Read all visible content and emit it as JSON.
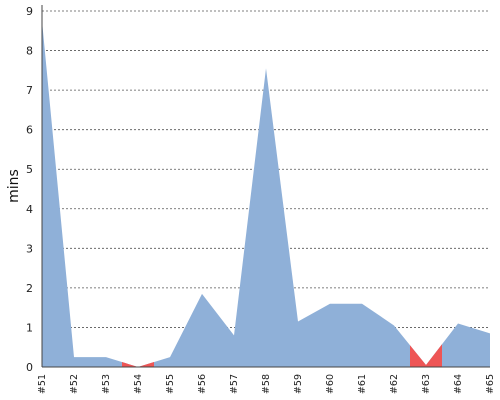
{
  "chart_data": {
    "type": "area",
    "ylabel": "mins",
    "xlabel": "",
    "ylim": [
      0,
      9
    ],
    "yticks": [
      "0",
      "1",
      "2",
      "3",
      "4",
      "5",
      "6",
      "7",
      "8",
      "9"
    ],
    "grid": true,
    "categories": [
      "#51",
      "#52",
      "#53",
      "#54",
      "#55",
      "#56",
      "#57",
      "#58",
      "#59",
      "#60",
      "#61",
      "#62",
      "#63",
      "#64",
      "#65"
    ],
    "series": [
      {
        "values": [
          8.75,
          0.25,
          0.25,
          0.0,
          0.25,
          1.85,
          0.8,
          7.55,
          1.15,
          1.6,
          1.6,
          1.05,
          0.05,
          1.1,
          0.85
        ]
      }
    ],
    "highlight_regions": [
      {
        "from": "#53",
        "to": "#55",
        "color": "#ee5555"
      },
      {
        "from": "#62",
        "to": "#64",
        "color": "#ee5555"
      }
    ],
    "colors": {
      "area": "#8fb0d8",
      "highlight": "#ee5555",
      "grid": "#555555"
    }
  }
}
